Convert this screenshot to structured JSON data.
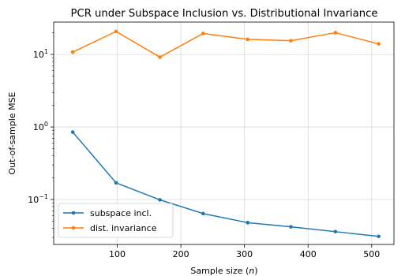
{
  "chart_data": {
    "type": "line",
    "title": "PCR under Subspace Inclusion vs. Distributional Invariance",
    "xlabel": "Sample size",
    "xlabel_var": "n",
    "ylabel": "Out-of-sample MSE",
    "x": [
      30,
      98,
      167,
      235,
      305,
      373,
      443,
      511
    ],
    "xticks": [
      100,
      200,
      300,
      400,
      500
    ],
    "xtick_labels": [
      "100",
      "200",
      "300",
      "400",
      "500"
    ],
    "xlim": [
      0,
      535
    ],
    "yscale": "log",
    "yticks": [
      0.1,
      1,
      10
    ],
    "ytick_labels": [
      {
        "base": "10",
        "exp": "−1"
      },
      {
        "base": "10",
        "exp": "0"
      },
      {
        "base": "10",
        "exp": "1"
      }
    ],
    "ylim": [
      0.024,
      28
    ],
    "grid": true,
    "legend_position": "lower-left",
    "series": [
      {
        "name": "subspace incl.",
        "color": "#1f77b4",
        "values": [
          0.85,
          0.17,
          0.099,
          0.064,
          0.048,
          0.042,
          0.036,
          0.031
        ]
      },
      {
        "name": "dist. invariance",
        "color": "#ff7f0e",
        "values": [
          10.8,
          20.8,
          9.2,
          19.5,
          16.2,
          15.5,
          20.0,
          14.0
        ]
      }
    ]
  }
}
